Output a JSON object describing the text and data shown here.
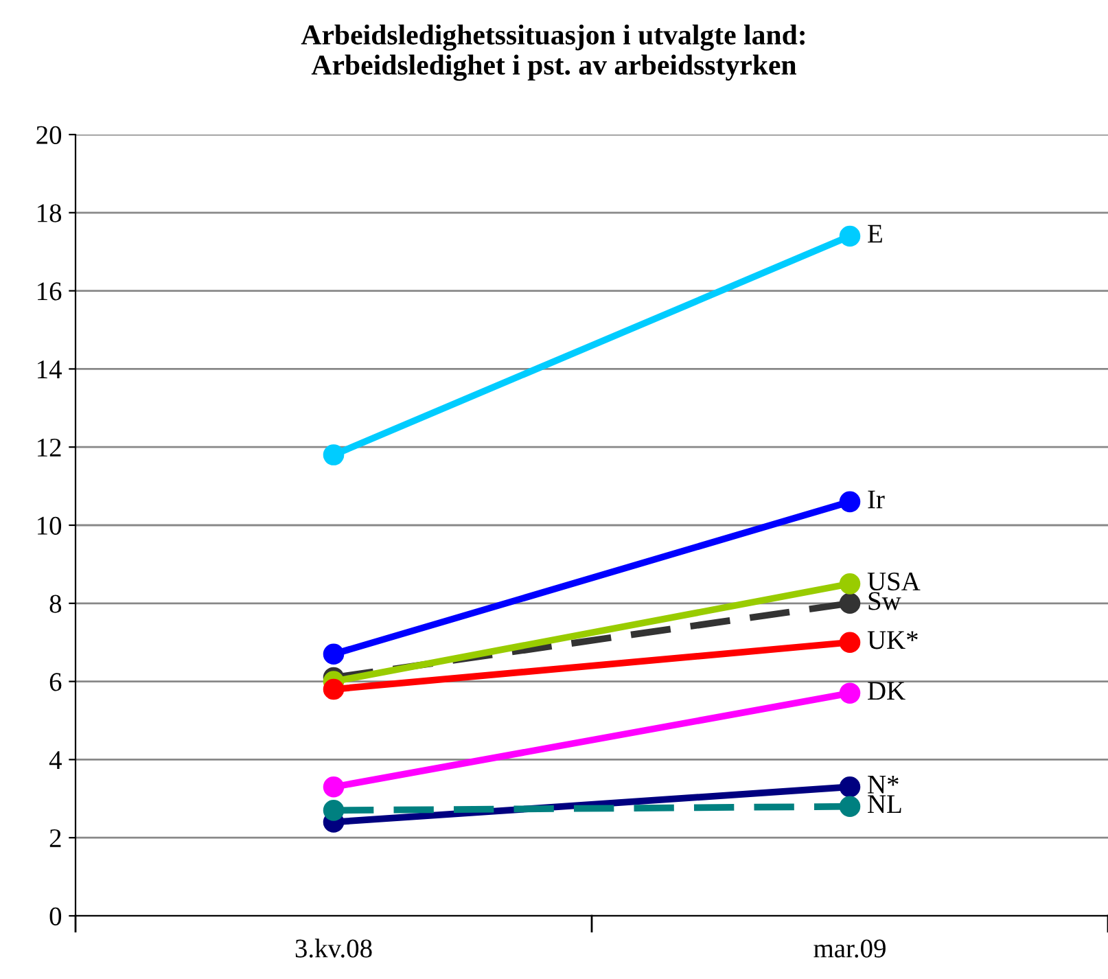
{
  "chart_data": {
    "type": "line",
    "title": "Arbeidsledighetssituasjon i utvalgte land:\nArbeidsledighet i pst. av arbeidsstyrken",
    "categories": [
      "3.kv.08",
      "mar.09"
    ],
    "series": [
      {
        "name": "E",
        "color": "#00ccff",
        "values": [
          11.8,
          17.4
        ]
      },
      {
        "name": "Ir",
        "color": "#0000ff",
        "values": [
          6.7,
          10.6
        ]
      },
      {
        "name": "Sw",
        "color": "#333333",
        "values": [
          6.1,
          8.0
        ],
        "line_style": "dashed"
      },
      {
        "name": "USA",
        "color": "#99cc00",
        "values": [
          6.0,
          8.5
        ]
      },
      {
        "name": "UK*",
        "color": "#ff0000",
        "values": [
          5.8,
          7.0
        ]
      },
      {
        "name": "DK",
        "color": "#ff00ff",
        "values": [
          3.3,
          5.7
        ]
      },
      {
        "name": "N*",
        "color": "#000080",
        "values": [
          2.4,
          3.3
        ]
      },
      {
        "name": "NL",
        "color": "#008080",
        "values": [
          2.7,
          2.8
        ],
        "line_style": "dashed"
      }
    ],
    "ylim": [
      0,
      20
    ],
    "yticks": [
      0,
      2,
      4,
      6,
      8,
      10,
      12,
      14,
      16,
      18,
      20
    ],
    "grid": "y",
    "legend": false,
    "marker": "circle",
    "line_style": "solid"
  }
}
